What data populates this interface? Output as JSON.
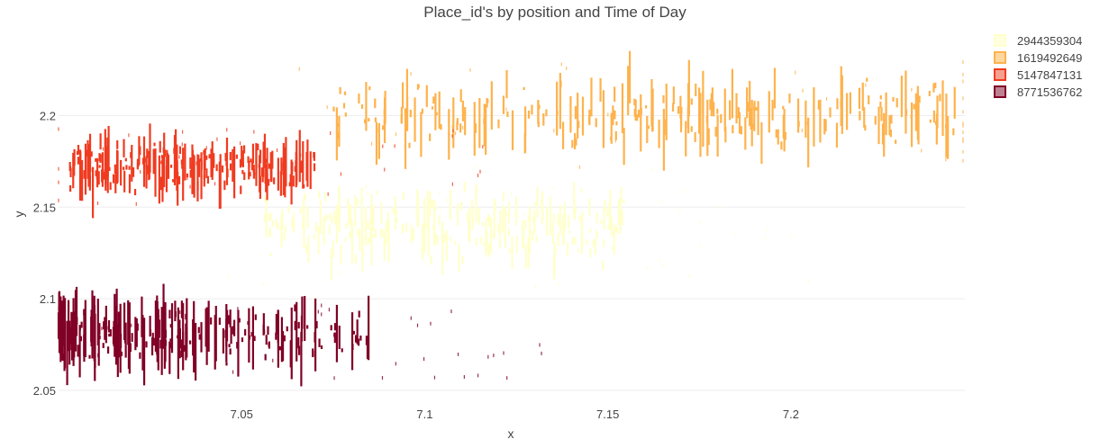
{
  "chart_data": {
    "type": "scatter",
    "title": "Place_id's by position and Time of Day",
    "xlabel": "x",
    "ylabel": "y",
    "xlim": [
      7.0,
      7.2475
    ],
    "ylim": [
      2.047,
      2.241
    ],
    "xticks": [
      {
        "value": 7.05,
        "label": "7.05"
      },
      {
        "value": 7.1,
        "label": "7.1"
      },
      {
        "value": 7.15,
        "label": "7.15"
      },
      {
        "value": 7.2,
        "label": "7.2"
      }
    ],
    "yticks": [
      {
        "value": 2.05,
        "label": "2.05"
      },
      {
        "value": 2.1,
        "label": "2.1"
      },
      {
        "value": 2.15,
        "label": "2.15"
      },
      {
        "value": 2.2,
        "label": "2.2"
      }
    ],
    "grid": "horizontal",
    "legend_position": "right",
    "series": [
      {
        "name": "2944359304",
        "color": "#ffffcc",
        "legend_fill": "#ffffe0",
        "x_range": [
          7.055,
          7.155
        ],
        "y_center": 2.14,
        "y_spread": 0.024,
        "vline_length": [
          0.004,
          0.022
        ],
        "points": [
          [
            7.058,
            2.145
          ],
          [
            7.062,
            2.138
          ],
          [
            7.067,
            2.149
          ],
          [
            7.071,
            2.132
          ],
          [
            7.076,
            2.141
          ],
          [
            7.079,
            2.152
          ],
          [
            7.083,
            2.136
          ],
          [
            7.086,
            2.144
          ],
          [
            7.089,
            2.128
          ],
          [
            7.092,
            2.147
          ],
          [
            7.095,
            2.139
          ],
          [
            7.098,
            2.151
          ],
          [
            7.101,
            2.134
          ],
          [
            7.104,
            2.143
          ],
          [
            7.106,
            2.129
          ],
          [
            7.109,
            2.146
          ],
          [
            7.112,
            2.137
          ],
          [
            7.114,
            2.152
          ],
          [
            7.117,
            2.131
          ],
          [
            7.119,
            2.144
          ],
          [
            7.122,
            2.139
          ],
          [
            7.125,
            2.148
          ],
          [
            7.127,
            2.133
          ],
          [
            7.13,
            2.142
          ],
          [
            7.132,
            2.151
          ],
          [
            7.135,
            2.136
          ],
          [
            7.137,
            2.143
          ],
          [
            7.139,
            2.127
          ],
          [
            7.141,
            2.146
          ],
          [
            7.143,
            2.138
          ],
          [
            7.145,
            2.15
          ],
          [
            7.147,
            2.135
          ],
          [
            7.149,
            2.144
          ],
          [
            7.151,
            2.14
          ],
          [
            7.153,
            2.147
          ]
        ]
      },
      {
        "name": "1619492649",
        "color": "#feb24c",
        "legend_fill": "#fed7a0",
        "x_range": [
          7.075,
          7.245
        ],
        "y_center": 2.2,
        "y_spread": 0.02,
        "vline_length": [
          0.004,
          0.035
        ],
        "points": [
          [
            7.076,
            2.19
          ],
          [
            7.084,
            2.205
          ],
          [
            7.089,
            2.196
          ],
          [
            7.094,
            2.211
          ],
          [
            7.099,
            2.188
          ],
          [
            7.104,
            2.203
          ],
          [
            7.111,
            2.197
          ],
          [
            7.117,
            2.207
          ],
          [
            7.124,
            2.192
          ],
          [
            7.131,
            2.202
          ],
          [
            7.137,
            2.208
          ],
          [
            7.141,
            2.186
          ],
          [
            7.145,
            2.199
          ],
          [
            7.148,
            2.214
          ],
          [
            7.151,
            2.193
          ],
          [
            7.154,
            2.204
          ],
          [
            7.156,
            2.221
          ],
          [
            7.159,
            2.196
          ],
          [
            7.162,
            2.207
          ],
          [
            7.164,
            2.19
          ],
          [
            7.166,
            2.202
          ],
          [
            7.168,
            2.211
          ],
          [
            7.17,
            2.195
          ],
          [
            7.172,
            2.204
          ],
          [
            7.174,
            2.214
          ],
          [
            7.176,
            2.198
          ],
          [
            7.178,
            2.206
          ],
          [
            7.18,
            2.189
          ],
          [
            7.182,
            2.203
          ],
          [
            7.184,
            2.212
          ],
          [
            7.186,
            2.196
          ],
          [
            7.188,
            2.207
          ],
          [
            7.19,
            2.199
          ],
          [
            7.192,
            2.185
          ],
          [
            7.195,
            2.203
          ],
          [
            7.198,
            2.194
          ],
          [
            7.202,
            2.2
          ],
          [
            7.208,
            2.197
          ],
          [
            7.214,
            2.206
          ],
          [
            7.22,
            2.199
          ],
          [
            7.226,
            2.201
          ],
          [
            7.233,
            2.195
          ],
          [
            7.24,
            2.202
          ]
        ]
      },
      {
        "name": "5147847131",
        "color": "#f03b20",
        "legend_fill": "#f7a08f",
        "x_range": [
          7.003,
          7.07
        ],
        "y_center": 2.172,
        "y_spread": 0.015,
        "vline_length": [
          0.004,
          0.03
        ],
        "points": [
          [
            7.004,
            2.17
          ],
          [
            7.008,
            2.176
          ],
          [
            7.011,
            2.166
          ],
          [
            7.013,
            2.178
          ],
          [
            7.016,
            2.172
          ],
          [
            7.018,
            2.164
          ],
          [
            7.02,
            2.174
          ],
          [
            7.022,
            2.181
          ],
          [
            7.024,
            2.169
          ],
          [
            7.026,
            2.175
          ],
          [
            7.028,
            2.163
          ],
          [
            7.03,
            2.172
          ],
          [
            7.032,
            2.179
          ],
          [
            7.034,
            2.168
          ],
          [
            7.036,
            2.174
          ],
          [
            7.038,
            2.166
          ],
          [
            7.04,
            2.176
          ],
          [
            7.042,
            2.171
          ],
          [
            7.044,
            2.162
          ],
          [
            7.046,
            2.175
          ],
          [
            7.048,
            2.169
          ],
          [
            7.05,
            2.178
          ],
          [
            7.052,
            2.171
          ],
          [
            7.054,
            2.165
          ],
          [
            7.056,
            2.176
          ],
          [
            7.058,
            2.172
          ],
          [
            7.06,
            2.168
          ],
          [
            7.062,
            2.176
          ],
          [
            7.065,
            2.17
          ],
          [
            7.068,
            2.174
          ]
        ]
      },
      {
        "name": "8771536762",
        "color": "#800026",
        "legend_fill": "#bf8092",
        "x_range": [
          7.0,
          7.085
        ],
        "y_center": 2.08,
        "y_spread": 0.016,
        "vline_length": [
          0.004,
          0.04
        ],
        "points": [
          [
            7.001,
            2.082
          ],
          [
            7.003,
            2.076
          ],
          [
            7.005,
            2.088
          ],
          [
            7.007,
            2.079
          ],
          [
            7.009,
            2.084
          ],
          [
            7.011,
            2.074
          ],
          [
            7.013,
            2.086
          ],
          [
            7.015,
            2.08
          ],
          [
            7.017,
            2.077
          ],
          [
            7.019,
            2.087
          ],
          [
            7.021,
            2.081
          ],
          [
            7.023,
            2.076
          ],
          [
            7.025,
            2.085
          ],
          [
            7.027,
            2.082
          ],
          [
            7.029,
            2.078
          ],
          [
            7.031,
            2.084
          ],
          [
            7.033,
            2.08
          ],
          [
            7.035,
            2.076
          ],
          [
            7.037,
            2.083
          ],
          [
            7.039,
            2.079
          ],
          [
            7.041,
            2.085
          ],
          [
            7.043,
            2.081
          ],
          [
            7.045,
            2.077
          ],
          [
            7.048,
            2.084
          ],
          [
            7.052,
            2.08
          ],
          [
            7.056,
            2.083
          ],
          [
            7.06,
            2.078
          ],
          [
            7.065,
            2.082
          ],
          [
            7.07,
            2.079
          ],
          [
            7.076,
            2.081
          ]
        ]
      }
    ]
  }
}
